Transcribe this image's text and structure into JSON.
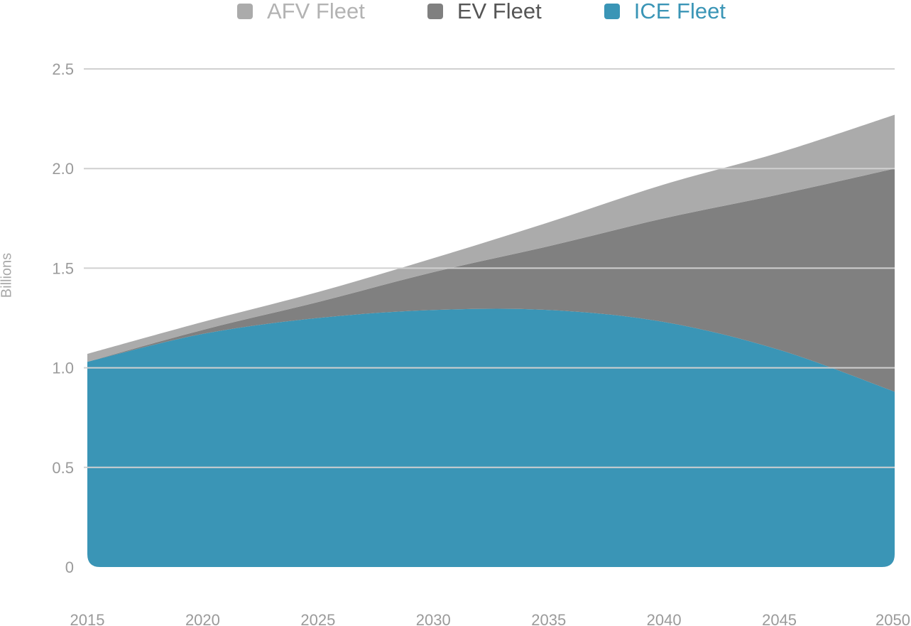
{
  "chart_data": {
    "type": "area",
    "stacked": true,
    "ylabel": "Billions",
    "xlabel": "",
    "x": [
      2015,
      2020,
      2025,
      2030,
      2035,
      2040,
      2045,
      2050
    ],
    "xlim": [
      2015,
      2050
    ],
    "ylim": [
      0,
      2.5
    ],
    "yticks": [
      "0",
      "0.5",
      "1.0",
      "1.5",
      "2.0",
      "2.5"
    ],
    "xticks": [
      "2015",
      "2020",
      "2025",
      "2030",
      "2035",
      "2040",
      "2045",
      "2050"
    ],
    "grid": true,
    "legend_position": "top",
    "series": [
      {
        "name": "ICE Fleet",
        "color": "#3a95b6",
        "values": [
          1.03,
          1.17,
          1.25,
          1.29,
          1.29,
          1.23,
          1.09,
          0.88
        ]
      },
      {
        "name": "EV Fleet",
        "color": "#808080",
        "values": [
          0.0,
          0.02,
          0.08,
          0.19,
          0.32,
          0.52,
          0.78,
          1.12
        ]
      },
      {
        "name": "AFV Fleet",
        "color": "#ababab",
        "values": [
          0.04,
          0.04,
          0.05,
          0.07,
          0.12,
          0.17,
          0.21,
          0.27
        ]
      }
    ],
    "legend_order": [
      "AFV Fleet",
      "EV Fleet",
      "ICE Fleet"
    ],
    "legend_label_colors": {
      "AFV Fleet": "#b3b3b3",
      "EV Fleet": "#555555",
      "ICE Fleet": "#3a95b6"
    },
    "axis_text_color": "#9a9a9a",
    "grid_color": "#d0d0d0"
  }
}
